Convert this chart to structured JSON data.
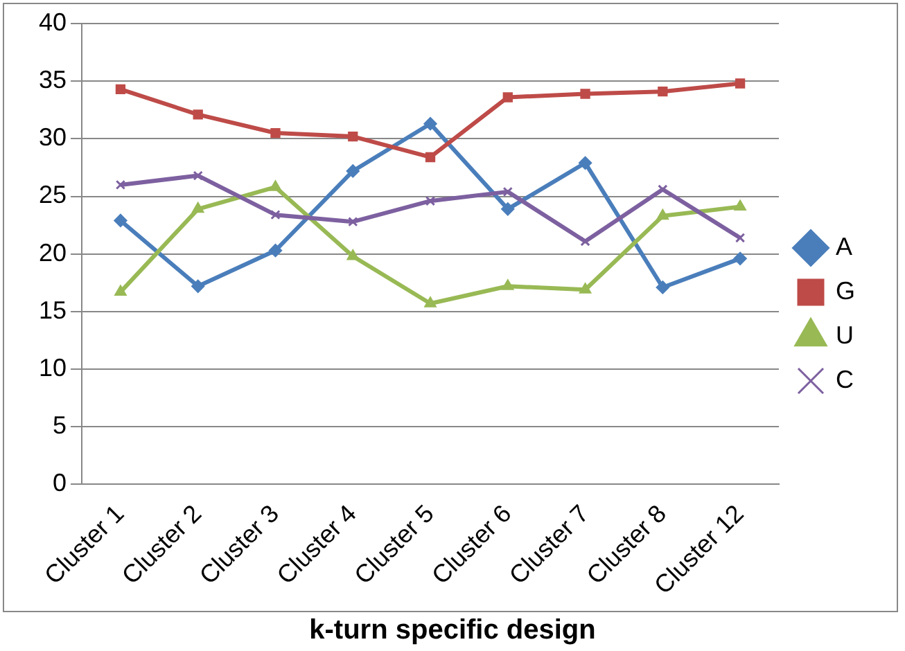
{
  "chart_data": {
    "type": "line",
    "xlabel": "k-turn specific design",
    "categories": [
      "Cluster 1",
      "Cluster 2",
      "Cluster 3",
      "Cluster 4",
      "Cluster 5",
      "Cluster 6",
      "Cluster 7",
      "Cluster 8",
      "Cluster 12"
    ],
    "series": [
      {
        "name": "A",
        "color": "#4a7ebb",
        "marker": "diamond",
        "values": [
          22.9,
          17.2,
          20.3,
          27.2,
          31.3,
          23.9,
          27.9,
          17.1,
          19.6
        ]
      },
      {
        "name": "G",
        "color": "#be4b48",
        "marker": "square",
        "values": [
          34.3,
          32.1,
          30.5,
          30.2,
          28.4,
          33.6,
          33.9,
          34.1,
          34.8
        ]
      },
      {
        "name": "U",
        "color": "#98b954",
        "marker": "triangle",
        "values": [
          16.7,
          23.9,
          25.8,
          19.8,
          15.7,
          17.2,
          16.9,
          23.3,
          24.1
        ]
      },
      {
        "name": "C",
        "color": "#7d60a0",
        "marker": "cross",
        "values": [
          26.0,
          26.8,
          23.4,
          22.8,
          24.6,
          25.4,
          21.1,
          25.6,
          21.4
        ]
      }
    ],
    "ylim": [
      0,
      40
    ],
    "yticks": [
      0,
      5,
      10,
      15,
      20,
      25,
      30,
      35,
      40
    ],
    "grid": "y",
    "legend": "right",
    "line_style": "solid"
  }
}
